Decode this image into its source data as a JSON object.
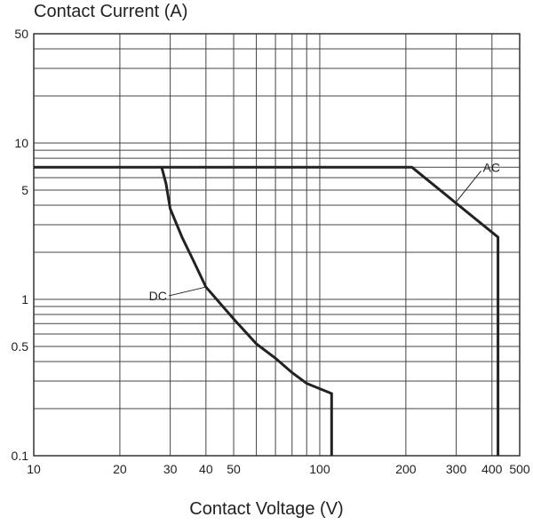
{
  "chart_data": {
    "type": "line",
    "title": "Contact Current (A)",
    "xlabel": "Contact Voltage (V)",
    "ylabel": "",
    "x_scale": "log",
    "y_scale": "log",
    "xlim": [
      10,
      500
    ],
    "ylim": [
      0.1,
      50
    ],
    "grid": true,
    "x_ticks": [
      10,
      20,
      30,
      40,
      50,
      100,
      200,
      300,
      400,
      500
    ],
    "x_tick_labels": [
      "10",
      "20",
      "30",
      "40",
      "50",
      "100",
      "200",
      "300",
      "400",
      "500"
    ],
    "y_ticks": [
      0.1,
      0.5,
      1,
      5,
      10,
      50
    ],
    "y_tick_labels": [
      "0.1",
      "0.5",
      "1",
      "5",
      "10",
      "50"
    ],
    "x_grid": [
      10,
      20,
      30,
      40,
      50,
      60,
      70,
      80,
      90,
      100,
      200,
      300,
      400,
      500
    ],
    "y_grid": [
      0.1,
      0.2,
      0.3,
      0.4,
      0.5,
      0.6,
      0.7,
      0.8,
      0.9,
      1,
      2,
      3,
      4,
      5,
      6,
      7,
      8,
      9,
      10,
      20,
      30,
      40,
      50
    ],
    "series": [
      {
        "name": "AC",
        "points": [
          [
            10,
            7
          ],
          [
            210,
            7
          ],
          [
            420,
            2.5
          ],
          [
            420,
            0.1
          ]
        ]
      },
      {
        "name": "DC",
        "points": [
          [
            28,
            7
          ],
          [
            29,
            5.5
          ],
          [
            30,
            3.8
          ],
          [
            33,
            2.5
          ],
          [
            36,
            1.8
          ],
          [
            40,
            1.2
          ],
          [
            50,
            0.75
          ],
          [
            60,
            0.52
          ],
          [
            70,
            0.42
          ],
          [
            80,
            0.34
          ],
          [
            90,
            0.29
          ],
          [
            110,
            0.25
          ],
          [
            110,
            0.1
          ]
        ]
      }
    ]
  }
}
